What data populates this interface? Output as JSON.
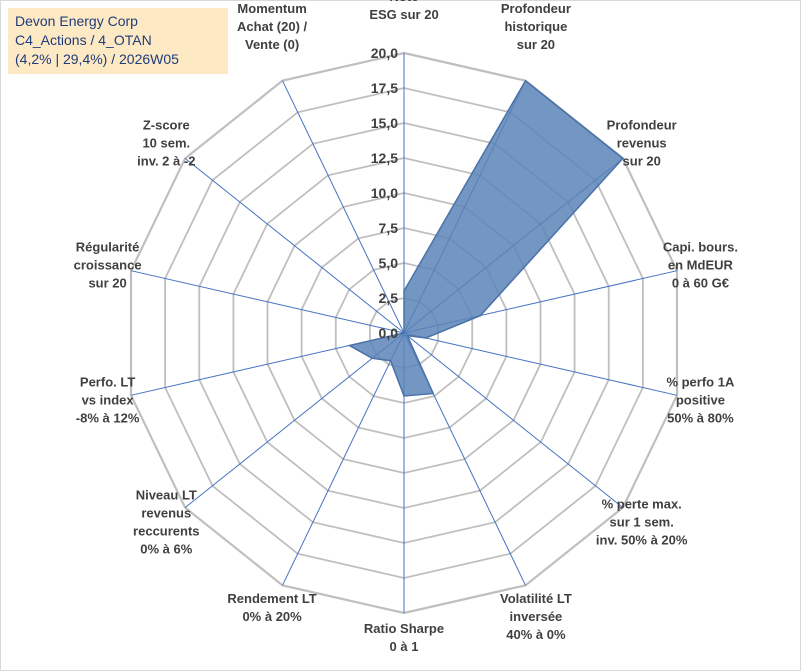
{
  "header": {
    "company": "Devon Energy Corp",
    "line2": "C4_Actions / 4_OTAN",
    "line3": "(4,2% | 29,4%) / 2026W05"
  },
  "colors": {
    "fill": "#5a84b8",
    "stroke": "#4a72a8",
    "grid": "#bfbfbf",
    "spoke": "#4472c4",
    "title_bg": "#fde9c4",
    "title_text": "#1f3d7a"
  },
  "chart_data": {
    "type": "radar",
    "ylim": [
      0,
      20
    ],
    "grid": true,
    "tick_labels": [
      "0,0",
      "2,5",
      "5,0",
      "7,5",
      "10,0",
      "12,5",
      "15,0",
      "17,5",
      "20,0"
    ],
    "categories": [
      [
        "Note",
        "ESG sur 20"
      ],
      [
        "Profondeur",
        "historique",
        "sur 20"
      ],
      [
        "Profondeur",
        "revenus",
        "sur 20"
      ],
      [
        "Capi. bours.",
        "en MdEUR",
        "0 à 60 G€"
      ],
      [
        "% perfo 1A",
        "positive",
        "50% à 80%"
      ],
      [
        "% perte max.",
        "sur 1 sem.",
        "inv. 50% à 20%"
      ],
      [
        "Volatilité LT",
        "inversée",
        "40% à 0%"
      ],
      [
        "Ratio Sharpe",
        "0 à 1"
      ],
      [
        "Rendement LT",
        "0% à 20%"
      ],
      [
        "Niveau LT",
        "revenus",
        "reccurents",
        "0% à 6%"
      ],
      [
        "Perfo. LT",
        "vs index",
        "-8% à 12%"
      ],
      [
        "Régularité",
        "croissance",
        "sur 20"
      ],
      [
        "Z-score",
        "10 sem.",
        "inv. 2 à -2"
      ],
      [
        "Momentum",
        "Achat (20) /",
        "Vente (0)"
      ]
    ],
    "series": [
      {
        "values": [
          3.0,
          20.0,
          20.0,
          5.6,
          1.6,
          0.3,
          4.8,
          4.5,
          2.2,
          2.9,
          4.0,
          0.0,
          0.0,
          0.0
        ]
      }
    ]
  }
}
